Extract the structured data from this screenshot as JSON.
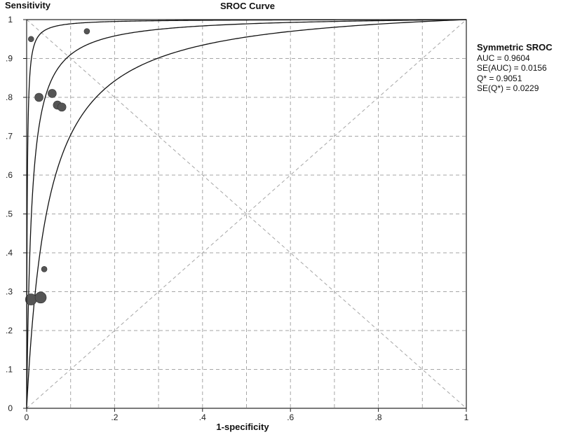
{
  "chart_data": {
    "type": "scatter",
    "title": "SROC Curve",
    "xlabel": "1-specificity",
    "ylabel": "Sensitivity",
    "xlim": [
      0,
      1
    ],
    "ylim": [
      0,
      1
    ],
    "x_ticks": [
      "0",
      ".2",
      ".4",
      ".6",
      ".8",
      "1"
    ],
    "y_ticks": [
      "0",
      ".1",
      ".2",
      ".3",
      ".4",
      ".5",
      ".6",
      ".7",
      ".8",
      ".9",
      "1"
    ],
    "grid": true,
    "points": [
      {
        "x": 0.01,
        "y": 0.95,
        "size": "small"
      },
      {
        "x": 0.137,
        "y": 0.97,
        "size": "small"
      },
      {
        "x": 0.028,
        "y": 0.8,
        "size": "medium"
      },
      {
        "x": 0.058,
        "y": 0.81,
        "size": "medium"
      },
      {
        "x": 0.07,
        "y": 0.78,
        "size": "medium"
      },
      {
        "x": 0.08,
        "y": 0.775,
        "size": "medium"
      },
      {
        "x": 0.04,
        "y": 0.358,
        "size": "small"
      },
      {
        "x": 0.01,
        "y": 0.28,
        "size": "large"
      },
      {
        "x": 0.032,
        "y": 0.285,
        "size": "large"
      }
    ],
    "curves": [
      {
        "role": "sroc",
        "auc": 0.9604
      },
      {
        "role": "upper-bound"
      },
      {
        "role": "lower-bound"
      }
    ],
    "reference_lines": [
      "diagonal",
      "anti-diagonal"
    ]
  },
  "stats": {
    "header": "Symmetric SROC",
    "lines": [
      "AUC = 0.9604",
      "SE(AUC) = 0.0156",
      "Q* = 0.9051",
      "SE(Q*) = 0.0229"
    ]
  },
  "colors": {
    "curve": "#111111",
    "point": "#555555",
    "grid": "#a6a6a6",
    "frame": "#222222"
  }
}
